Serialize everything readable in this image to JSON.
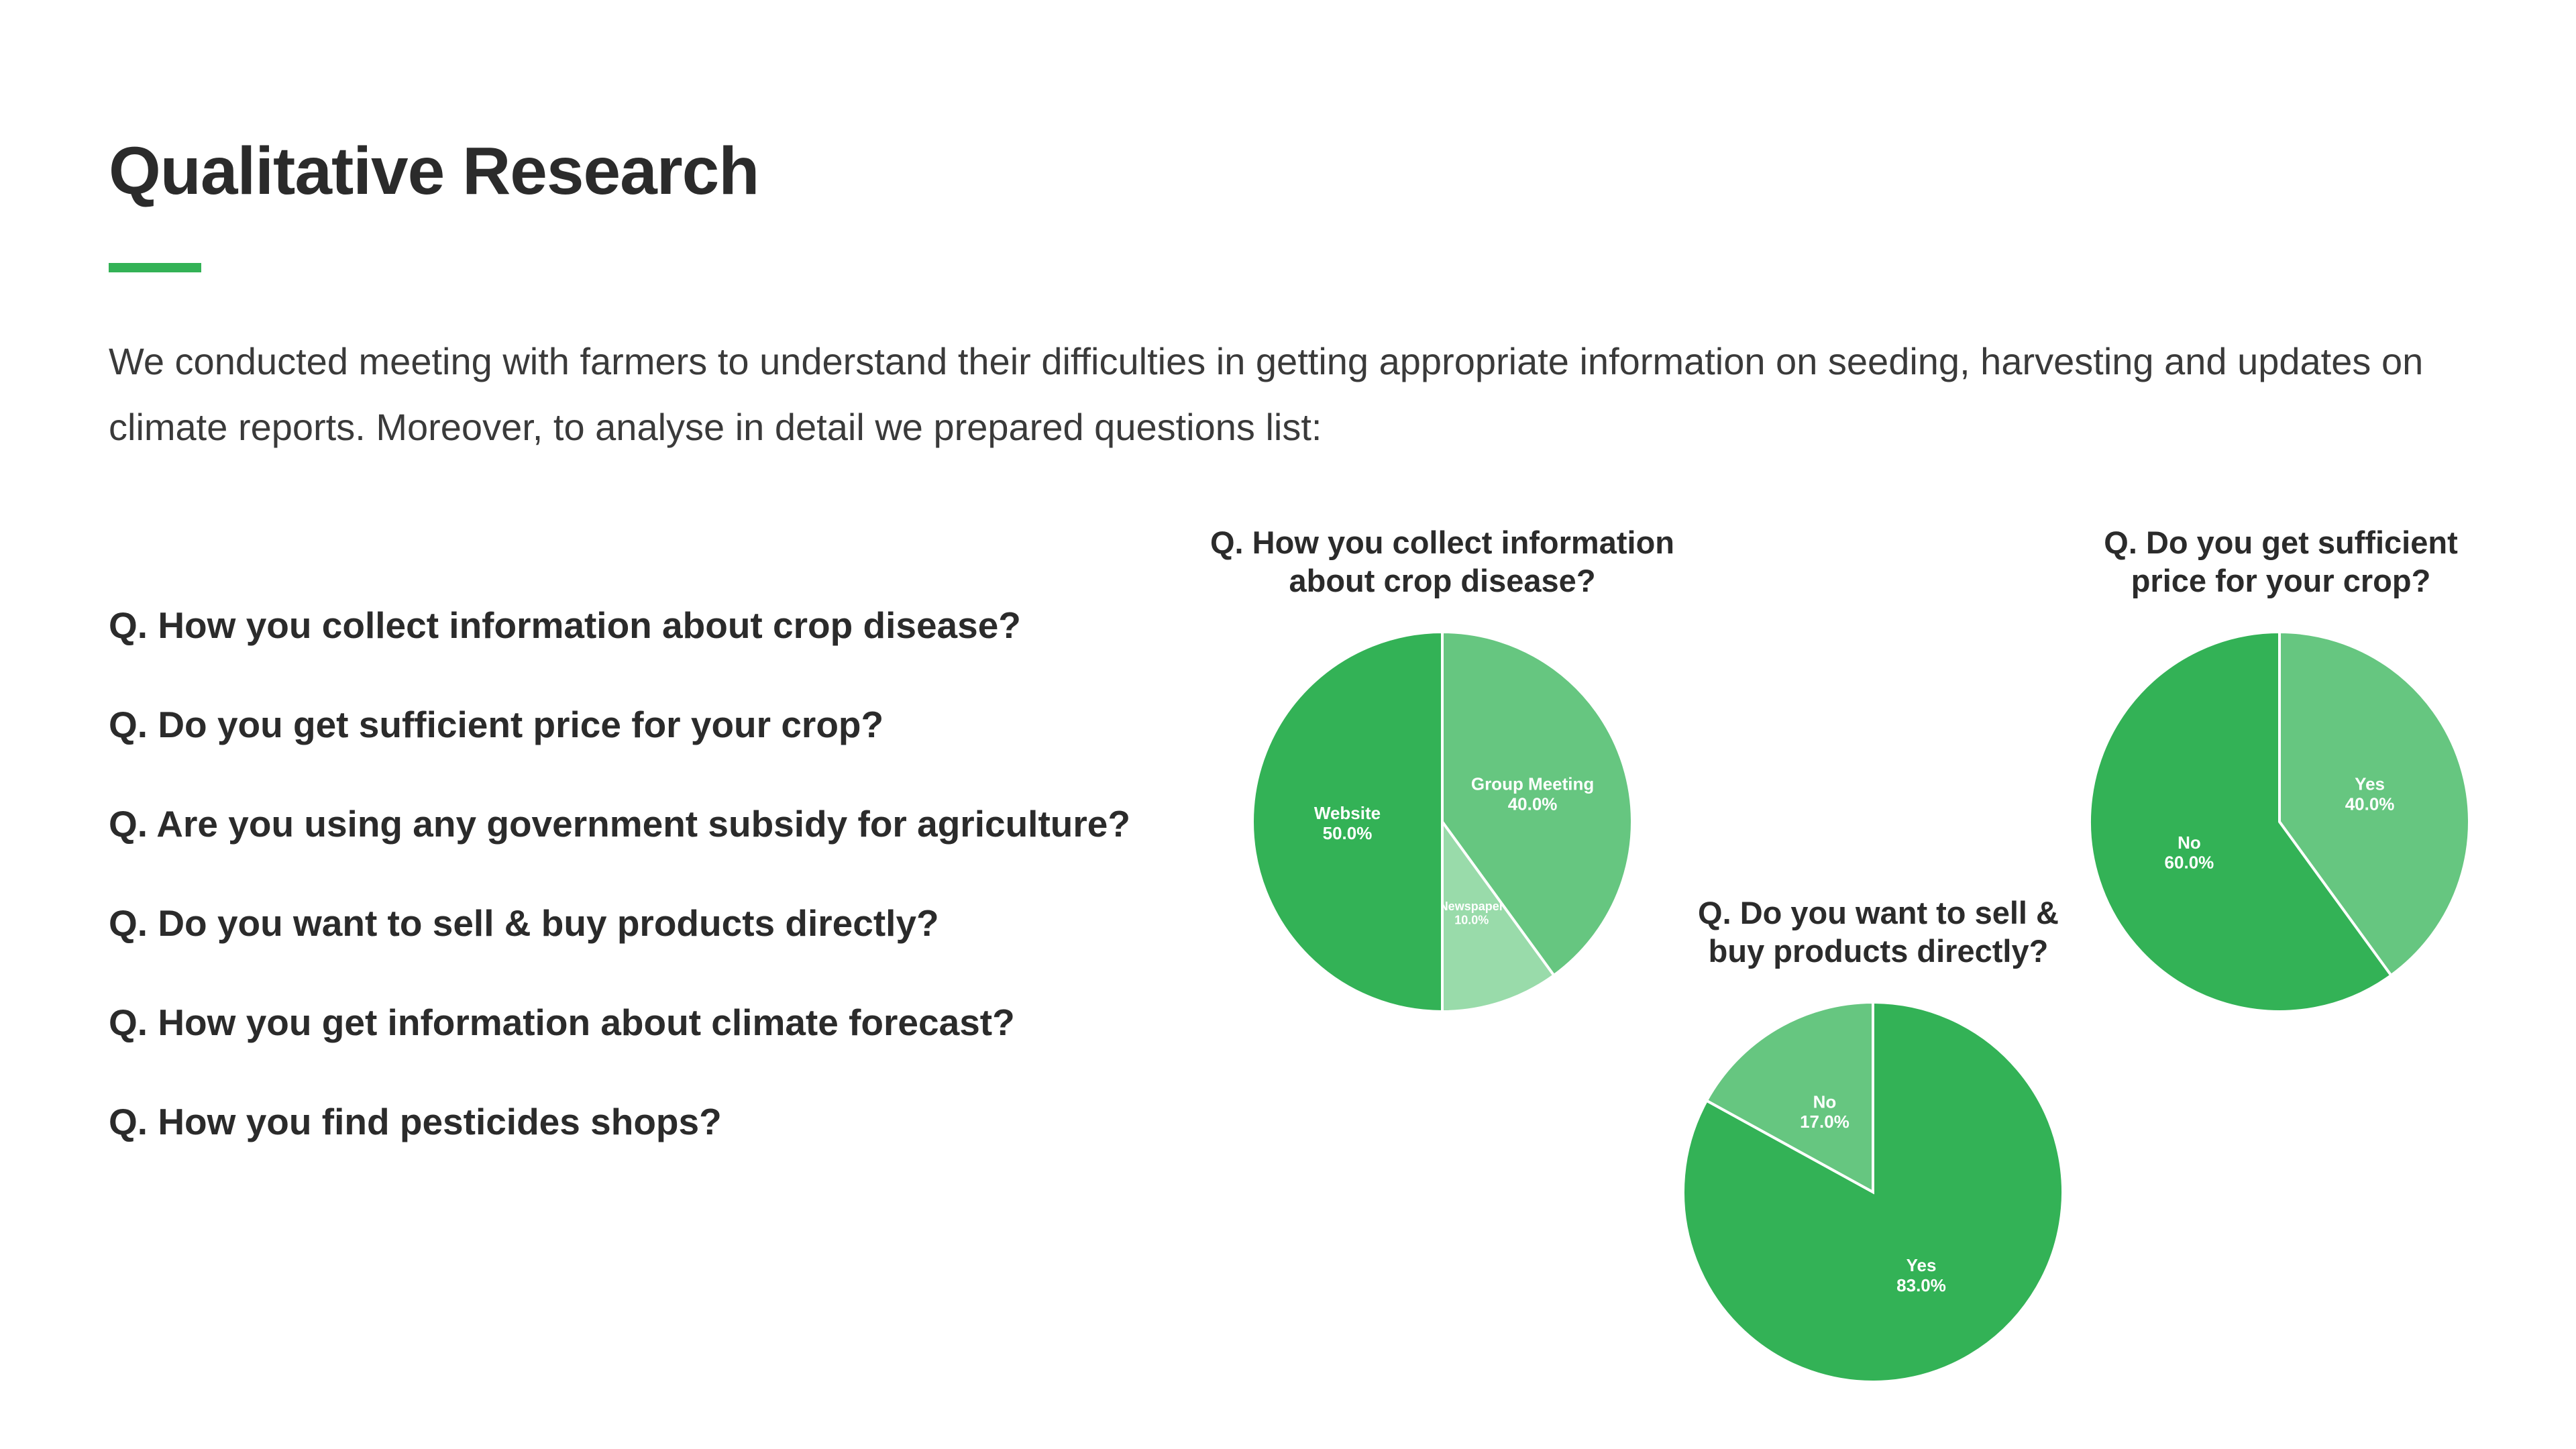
{
  "page": {
    "title": "Qualitative Research",
    "intro": "We conducted meeting with farmers to understand their difficulties in getting appropriate information on seeding, harvesting and updates on climate reports. Moreover, to analyse in detail we prepared questions list:",
    "accent_color": "#33b256"
  },
  "questions": [
    "Q. How you collect information about crop disease?",
    "Q. Do you get sufficient price for your crop?",
    "Q. Are you using any government subsidy for agriculture?",
    "Q. Do you want to sell & buy products directly?",
    "Q. How you get information about climate forecast?",
    "Q. How you find pesticides shops?"
  ],
  "chart_data": [
    {
      "type": "pie",
      "title_lines": [
        "Q. How you collect information",
        "about crop disease?"
      ],
      "slices": [
        {
          "label": "Group Meeting",
          "value": 40.0,
          "value_label": "40.0%",
          "color": "#66c680"
        },
        {
          "label": "Newspaper",
          "value": 10.0,
          "value_label": "10.0%",
          "color": "#99dbaa"
        },
        {
          "label": "Website",
          "value": 50.0,
          "value_label": "50.0%",
          "color": "#33b256"
        }
      ]
    },
    {
      "type": "pie",
      "title_lines": [
        "Q. Do you want to sell &",
        "buy products directly?"
      ],
      "slices": [
        {
          "label": "Yes",
          "value": 83.0,
          "value_label": "83.0%",
          "color": "#33b256"
        },
        {
          "label": "No",
          "value": 17.0,
          "value_label": "17.0%",
          "color": "#66c680"
        }
      ]
    },
    {
      "type": "pie",
      "title_lines": [
        "Q. Do you get sufficient",
        "price for your crop?"
      ],
      "slices": [
        {
          "label": "Yes",
          "value": 40.0,
          "value_label": "40.0%",
          "color": "#66c680"
        },
        {
          "label": "No",
          "value": 60.0,
          "value_label": "60.0%",
          "color": "#33b256"
        }
      ]
    }
  ]
}
